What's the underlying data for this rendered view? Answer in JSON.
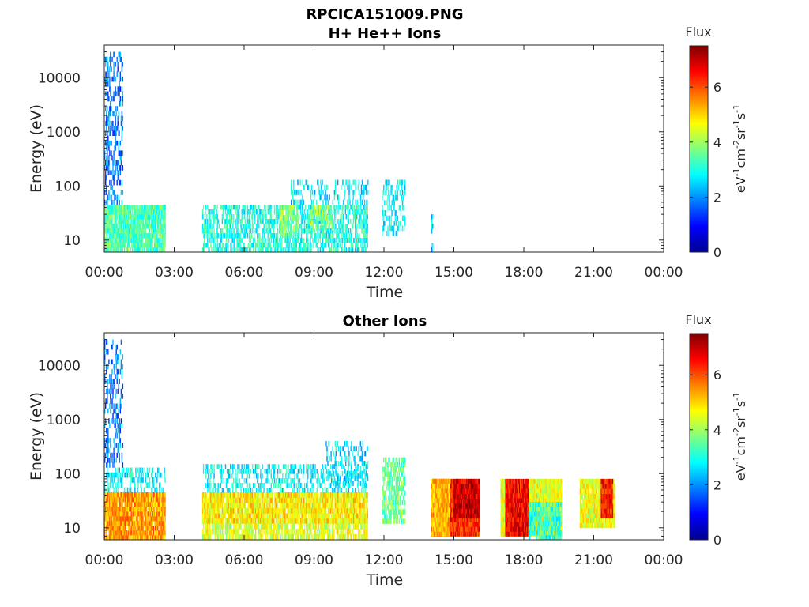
{
  "figure": {
    "title_line1": "RPCICA151009.PNG",
    "colorbar_label": "Flux",
    "colorbar_unit_parts": [
      "eV",
      "-1",
      "cm",
      "-2",
      "sr",
      "-1",
      "s",
      "-1"
    ],
    "colormap": "jet",
    "colormap_stops": [
      "#00008f",
      "#0000ff",
      "#0080ff",
      "#00ffff",
      "#80ff80",
      "#ffff00",
      "#ff8000",
      "#ff0000",
      "#800000"
    ]
  },
  "chart_data": [
    {
      "type": "heatmap",
      "title": "H+ He++ Ions",
      "xlabel": "Time",
      "ylabel": "Energy (eV)",
      "xlim": [
        0,
        24
      ],
      "x_ticks": [
        0,
        3,
        6,
        9,
        12,
        15,
        18,
        21,
        24
      ],
      "x_tick_labels": [
        "00:00",
        "03:00",
        "06:00",
        "09:00",
        "12:00",
        "15:00",
        "18:00",
        "21:00",
        "00:00"
      ],
      "y_scale": "log",
      "ylim": [
        6,
        40000
      ],
      "y_ticks": [
        10,
        100,
        1000,
        10000
      ],
      "y_tick_labels": [
        "10",
        "100",
        "1000",
        "10000"
      ],
      "colorbar": {
        "range": [
          0,
          7.5
        ],
        "ticks": [
          0,
          2,
          4,
          6
        ],
        "tick_labels": [
          "0",
          "2",
          "4",
          "6"
        ]
      },
      "regions": [
        {
          "t": [
            0.0,
            2.6
          ],
          "e": [
            6,
            45
          ],
          "flux": 3.4,
          "density": 0.9
        },
        {
          "t": [
            0.0,
            0.8
          ],
          "e": [
            45,
            30000
          ],
          "flux": 1.8,
          "density": 0.35
        },
        {
          "t": [
            4.2,
            11.3
          ],
          "e": [
            6,
            45
          ],
          "flux": 3.0,
          "density": 0.55
        },
        {
          "t": [
            7.5,
            8.3
          ],
          "e": [
            12,
            45
          ],
          "flux": 3.8,
          "density": 0.7
        },
        {
          "t": [
            8.8,
            9.8
          ],
          "e": [
            15,
            45
          ],
          "flux": 3.8,
          "density": 0.6
        },
        {
          "t": [
            8.0,
            11.3
          ],
          "e": [
            45,
            130
          ],
          "flux": 2.6,
          "density": 0.25
        },
        {
          "t": [
            11.9,
            12.9
          ],
          "e": [
            12,
            130
          ],
          "flux": 2.8,
          "density": 0.35
        },
        {
          "t": [
            14.0,
            14.1
          ],
          "e": [
            6,
            30
          ],
          "flux": 2.4,
          "density": 0.6
        }
      ]
    },
    {
      "type": "heatmap",
      "title": "Other Ions",
      "xlabel": "Time",
      "ylabel": "Energy (eV)",
      "xlim": [
        0,
        24
      ],
      "x_ticks": [
        0,
        3,
        6,
        9,
        12,
        15,
        18,
        21,
        24
      ],
      "x_tick_labels": [
        "00:00",
        "03:00",
        "06:00",
        "09:00",
        "12:00",
        "15:00",
        "18:00",
        "21:00",
        "00:00"
      ],
      "y_scale": "log",
      "ylim": [
        6,
        40000
      ],
      "y_ticks": [
        10,
        100,
        1000,
        10000
      ],
      "y_tick_labels": [
        "10",
        "100",
        "1000",
        "10000"
      ],
      "colorbar": {
        "range": [
          0,
          7.5
        ],
        "ticks": [
          0,
          2,
          4,
          6
        ],
        "tick_labels": [
          "0",
          "2",
          "4",
          "6"
        ]
      },
      "regions": [
        {
          "t": [
            0.0,
            2.6
          ],
          "e": [
            6,
            45
          ],
          "flux": 5.4,
          "density": 0.95
        },
        {
          "t": [
            0.0,
            2.6
          ],
          "e": [
            45,
            130
          ],
          "flux": 2.8,
          "density": 0.4
        },
        {
          "t": [
            0.0,
            0.8
          ],
          "e": [
            130,
            30000
          ],
          "flux": 1.8,
          "density": 0.3
        },
        {
          "t": [
            4.2,
            11.3
          ],
          "e": [
            12,
            45
          ],
          "flux": 4.8,
          "density": 0.9
        },
        {
          "t": [
            4.2,
            11.3
          ],
          "e": [
            6,
            12
          ],
          "flux": 4.4,
          "density": 0.7
        },
        {
          "t": [
            4.2,
            11.3
          ],
          "e": [
            45,
            150
          ],
          "flux": 2.8,
          "density": 0.35
        },
        {
          "t": [
            9.5,
            11.3
          ],
          "e": [
            60,
            400
          ],
          "flux": 2.6,
          "density": 0.3
        },
        {
          "t": [
            11.9,
            12.9
          ],
          "e": [
            12,
            200
          ],
          "flux": 3.6,
          "density": 0.6
        },
        {
          "t": [
            14.0,
            16.1
          ],
          "e": [
            7,
            80
          ],
          "flux": 6.3,
          "density": 1.0
        },
        {
          "t": [
            14.0,
            14.8
          ],
          "e": [
            7,
            80
          ],
          "flux": 5.2,
          "density": 1.0
        },
        {
          "t": [
            15.0,
            16.1
          ],
          "e": [
            15,
            80
          ],
          "flux": 6.9,
          "density": 1.0
        },
        {
          "t": [
            17.0,
            19.6
          ],
          "e": [
            7,
            80
          ],
          "flux": 4.5,
          "density": 1.0
        },
        {
          "t": [
            17.2,
            18.2
          ],
          "e": [
            7,
            80
          ],
          "flux": 6.6,
          "density": 1.0
        },
        {
          "t": [
            18.2,
            19.6
          ],
          "e": [
            6,
            30
          ],
          "flux": 3.2,
          "density": 0.8
        },
        {
          "t": [
            20.4,
            21.9
          ],
          "e": [
            10,
            80
          ],
          "flux": 4.6,
          "density": 0.95
        },
        {
          "t": [
            21.3,
            21.8
          ],
          "e": [
            15,
            80
          ],
          "flux": 6.4,
          "density": 1.0
        }
      ]
    }
  ]
}
